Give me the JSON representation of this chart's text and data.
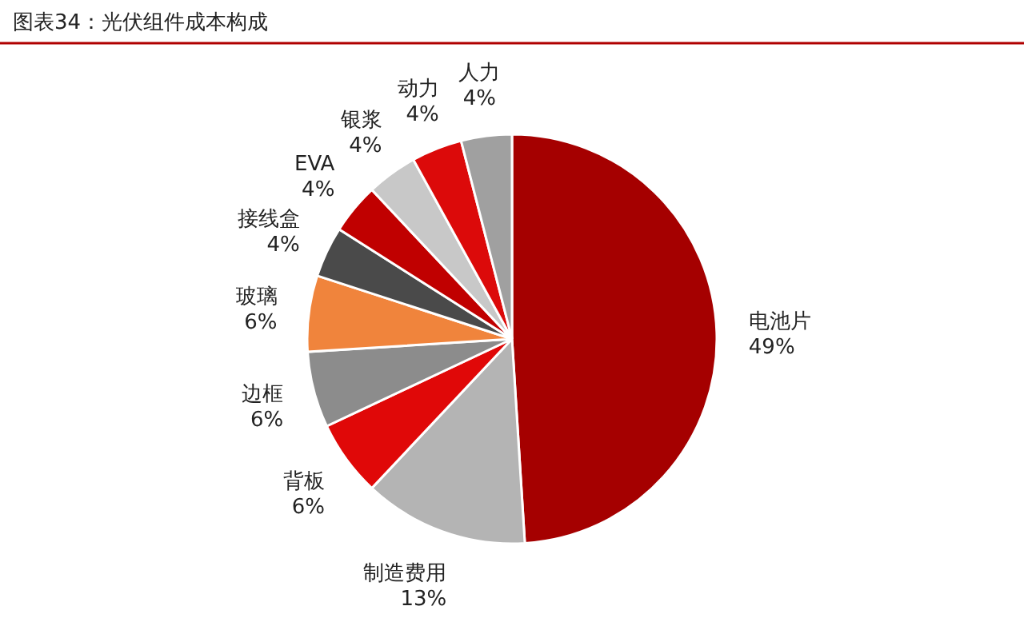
{
  "chart_data": {
    "type": "pie",
    "title": "图表34：光伏组件成本构成",
    "categories": [
      "电池片",
      "制造费用",
      "背板",
      "边框",
      "玻璃",
      "接线盒",
      "EVA",
      "银浆",
      "动力",
      "人力"
    ],
    "values": [
      49,
      13,
      6,
      6,
      6,
      4,
      4,
      4,
      4,
      4
    ],
    "value_labels": [
      "49%",
      "13%",
      "6%",
      "6%",
      "6%",
      "4%",
      "4%",
      "4%",
      "4%",
      "4%"
    ],
    "colors": [
      "#a50000",
      "#b4b4b4",
      "#e00808",
      "#8c8c8c",
      "#f0843c",
      "#4a4a4a",
      "#c00000",
      "#c8c8c8",
      "#dc0a0a",
      "#a0a0a0"
    ],
    "legend": false
  }
}
